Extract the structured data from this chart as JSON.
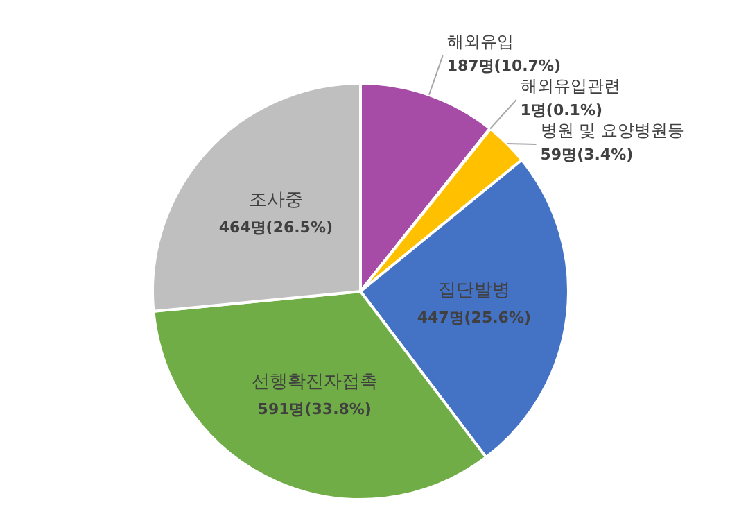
{
  "chart_data": {
    "type": "pie",
    "categories": [
      "해외유입",
      "해외유입관련",
      "병원 및 요양병원등",
      "집단발병",
      "선행확진자접촉",
      "조사중"
    ],
    "values": [
      187,
      1,
      59,
      447,
      591,
      464
    ],
    "colors": [
      "#a64ca6",
      "#ed7d31",
      "#ffc000",
      "#4472c4",
      "#70ad47",
      "#bfbfbf"
    ],
    "value_labels": [
      "187명(10.7%)",
      "1명(0.1%)",
      "59명(3.4%)",
      "447명(25.6%)",
      "591명(33.8%)",
      "464명(26.5%)"
    ]
  }
}
